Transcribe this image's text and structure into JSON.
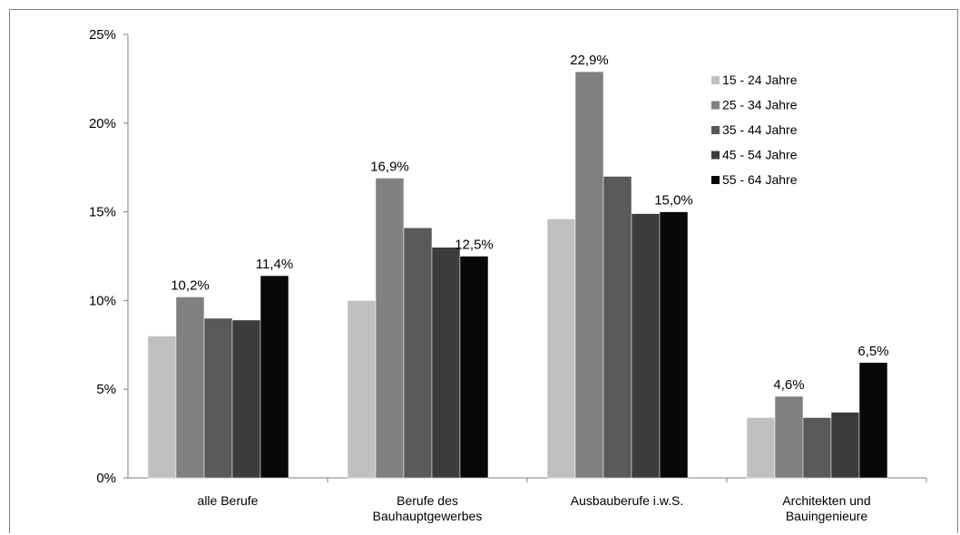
{
  "chart_data": {
    "type": "bar",
    "categories": [
      "alle Berufe",
      "Berufe des Bauhauptgewerbes",
      "Ausbauberufe i.w.S.",
      "Architekten und Bauingenieure"
    ],
    "category_lines": [
      [
        "alle Berufe"
      ],
      [
        "Berufe des",
        "Bauhauptgewerbes"
      ],
      [
        "Ausbauberufe i.w.S."
      ],
      [
        "Architekten und",
        "Bauingenieure"
      ]
    ],
    "series": [
      {
        "name": "15 - 24 Jahre",
        "color": "#c0c0c0",
        "values": [
          8.0,
          10.0,
          14.6,
          3.4
        ]
      },
      {
        "name": "25 - 34 Jahre",
        "color": "#808080",
        "values": [
          10.2,
          16.9,
          22.9,
          4.6
        ]
      },
      {
        "name": "35 - 44 Jahre",
        "color": "#595959",
        "values": [
          9.0,
          14.1,
          17.0,
          3.4
        ]
      },
      {
        "name": "45 - 54 Jahre",
        "color": "#3c3c3c",
        "values": [
          8.9,
          13.0,
          14.9,
          3.7
        ]
      },
      {
        "name": "55 - 64 Jahre",
        "color": "#080808",
        "values": [
          11.4,
          12.5,
          15.0,
          6.5
        ]
      }
    ],
    "data_labels": [
      {
        "category": 0,
        "series": 1,
        "text": "10,2%"
      },
      {
        "category": 0,
        "series": 4,
        "text": "11,4%"
      },
      {
        "category": 1,
        "series": 1,
        "text": "16,9%"
      },
      {
        "category": 1,
        "series": 4,
        "text": "12,5%"
      },
      {
        "category": 2,
        "series": 1,
        "text": "22,9%"
      },
      {
        "category": 2,
        "series": 4,
        "text": "15,0%"
      },
      {
        "category": 3,
        "series": 1,
        "text": "4,6%"
      },
      {
        "category": 3,
        "series": 4,
        "text": "6,5%"
      }
    ],
    "yticks": [
      {
        "value": 0,
        "label": "0%"
      },
      {
        "value": 5,
        "label": "5%"
      },
      {
        "value": 10,
        "label": "10%"
      },
      {
        "value": 15,
        "label": "15%"
      },
      {
        "value": 20,
        "label": "20%"
      },
      {
        "value": 25,
        "label": "25%"
      }
    ],
    "ylim": [
      0,
      25
    ],
    "title": "",
    "xlabel": "",
    "ylabel": "",
    "grid": false,
    "legend_position": "top-right"
  }
}
